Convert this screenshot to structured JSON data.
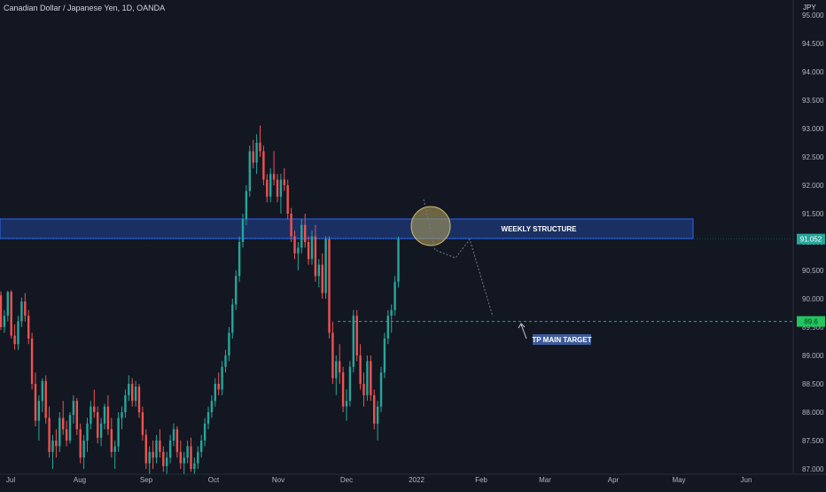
{
  "symbol_title": "Canadian Dollar / Japanese Yen, 1D, OANDA",
  "currency": "JPY",
  "colors": {
    "background": "#131722",
    "up": "#26a69a",
    "down": "#ef5350",
    "axis_text": "#b2b5be",
    "zone_fill": "#1e3a78",
    "zone_border": "#2962ff",
    "last_price_bg": "#26a69a",
    "target_line": "#26a69a",
    "target_price_bg": "#22c55e",
    "target_label_bg": "#3d5a99",
    "highlight_circle": "#a89a5a",
    "projection": "#787b86"
  },
  "chart_data": {
    "type": "candlestick",
    "y_ticks": [
      "87.000",
      "87.500",
      "88.000",
      "88.500",
      "89.000",
      "89.500",
      "90.000",
      "90.500",
      "91.000",
      "91.500",
      "92.000",
      "92.500",
      "93.000",
      "93.500",
      "94.000",
      "94.500",
      "95.000"
    ],
    "x_ticks": [
      "Jul",
      "Aug",
      "Sep",
      "Oct",
      "Nov",
      "Dec",
      "2022",
      "Feb",
      "Mar",
      "Apr",
      "May",
      "Jun"
    ],
    "last_price": "91.052",
    "target_price": "89.6",
    "candles": [
      [
        90.06,
        90.13,
        89.45,
        89.5
      ],
      [
        89.5,
        89.8,
        89.4,
        89.7
      ],
      [
        89.7,
        90.14,
        89.6,
        90.12
      ],
      [
        90.12,
        90.15,
        89.3,
        89.35
      ],
      [
        89.35,
        89.55,
        89.1,
        89.2
      ],
      [
        89.2,
        89.7,
        89.1,
        89.6
      ],
      [
        89.6,
        90.02,
        89.5,
        89.95
      ],
      [
        89.95,
        90.1,
        89.6,
        89.7
      ],
      [
        89.7,
        89.8,
        89.2,
        89.3
      ],
      [
        89.3,
        89.4,
        88.4,
        88.5
      ],
      [
        88.5,
        88.7,
        87.75,
        87.85
      ],
      [
        87.85,
        88.3,
        87.5,
        88.2
      ],
      [
        88.2,
        88.6,
        88.0,
        88.55
      ],
      [
        88.55,
        88.65,
        87.8,
        87.9
      ],
      [
        87.9,
        88.1,
        87.2,
        87.3
      ],
      [
        87.3,
        87.6,
        87.0,
        87.5
      ],
      [
        87.5,
        87.7,
        87.2,
        87.4
      ],
      [
        87.4,
        88.0,
        87.3,
        87.9
      ],
      [
        87.9,
        88.2,
        87.6,
        87.7
      ],
      [
        87.7,
        87.85,
        87.4,
        87.5
      ],
      [
        87.5,
        88.0,
        87.45,
        87.95
      ],
      [
        87.95,
        88.3,
        87.8,
        88.2
      ],
      [
        88.2,
        88.25,
        87.6,
        87.7
      ],
      [
        87.7,
        87.8,
        87.1,
        87.2
      ],
      [
        87.2,
        87.6,
        87.0,
        87.5
      ],
      [
        87.5,
        87.9,
        87.3,
        87.8
      ],
      [
        87.8,
        88.2,
        87.7,
        88.1
      ],
      [
        88.1,
        88.4,
        87.9,
        88.0
      ],
      [
        88.0,
        88.1,
        87.45,
        87.55
      ],
      [
        87.55,
        87.9,
        87.4,
        87.8
      ],
      [
        87.8,
        88.15,
        87.7,
        88.1
      ],
      [
        88.1,
        88.3,
        87.6,
        87.7
      ],
      [
        87.7,
        87.9,
        87.2,
        87.3
      ],
      [
        87.3,
        87.5,
        87.0,
        87.4
      ],
      [
        87.4,
        88.0,
        87.3,
        87.9
      ],
      [
        87.9,
        88.1,
        87.7,
        88.0
      ],
      [
        88.0,
        88.4,
        87.9,
        88.3
      ],
      [
        88.3,
        88.65,
        88.2,
        88.5
      ],
      [
        88.5,
        88.6,
        88.1,
        88.2
      ],
      [
        88.2,
        88.55,
        88.1,
        88.45
      ],
      [
        88.45,
        88.5,
        87.9,
        88.0
      ],
      [
        88.0,
        88.1,
        87.5,
        87.6
      ],
      [
        87.6,
        87.7,
        87.0,
        87.1
      ],
      [
        87.1,
        87.4,
        86.9,
        87.3
      ],
      [
        87.3,
        87.5,
        87.0,
        87.2
      ],
      [
        87.2,
        87.6,
        87.1,
        87.5
      ],
      [
        87.5,
        87.7,
        87.2,
        87.3
      ],
      [
        87.3,
        87.4,
        86.95,
        87.05
      ],
      [
        87.05,
        87.3,
        86.9,
        87.2
      ],
      [
        87.2,
        87.6,
        87.1,
        87.5
      ],
      [
        87.5,
        87.8,
        87.4,
        87.7
      ],
      [
        87.7,
        87.75,
        87.2,
        87.3
      ],
      [
        87.3,
        87.5,
        87.0,
        87.1
      ],
      [
        87.1,
        87.3,
        86.9,
        87.2
      ],
      [
        87.2,
        87.5,
        87.1,
        87.4
      ],
      [
        87.4,
        87.55,
        86.95,
        87.0
      ],
      [
        87.0,
        87.2,
        86.9,
        87.1
      ],
      [
        87.1,
        87.4,
        87.0,
        87.3
      ],
      [
        87.3,
        87.6,
        87.2,
        87.5
      ],
      [
        87.5,
        87.9,
        87.4,
        87.8
      ],
      [
        87.8,
        88.1,
        87.7,
        88.0
      ],
      [
        88.0,
        88.3,
        87.9,
        88.2
      ],
      [
        88.2,
        88.6,
        88.1,
        88.5
      ],
      [
        88.5,
        88.7,
        88.3,
        88.4
      ],
      [
        88.4,
        88.9,
        88.3,
        88.8
      ],
      [
        88.8,
        89.1,
        88.7,
        89.0
      ],
      [
        89.0,
        89.5,
        88.9,
        89.4
      ],
      [
        89.4,
        90.0,
        89.3,
        89.9
      ],
      [
        89.9,
        90.5,
        89.8,
        90.4
      ],
      [
        90.4,
        91.1,
        90.3,
        91.0
      ],
      [
        91.0,
        91.5,
        90.9,
        91.4
      ],
      [
        91.4,
        92.0,
        91.3,
        91.9
      ],
      [
        91.9,
        92.7,
        91.8,
        92.6
      ],
      [
        92.6,
        92.8,
        92.3,
        92.4
      ],
      [
        92.4,
        92.9,
        92.2,
        92.75
      ],
      [
        92.75,
        93.05,
        92.5,
        92.6
      ],
      [
        92.6,
        92.7,
        92.0,
        92.1
      ],
      [
        92.1,
        92.2,
        91.7,
        91.8
      ],
      [
        91.8,
        92.3,
        91.7,
        92.2
      ],
      [
        92.2,
        92.6,
        92.0,
        92.1
      ],
      [
        92.1,
        92.2,
        91.7,
        91.8
      ],
      [
        91.8,
        92.2,
        91.5,
        92.1
      ],
      [
        92.1,
        92.3,
        91.9,
        92.0
      ],
      [
        92.0,
        92.1,
        91.4,
        91.5
      ],
      [
        91.5,
        91.6,
        91.0,
        91.1
      ],
      [
        91.1,
        91.2,
        90.7,
        90.8
      ],
      [
        90.8,
        91.0,
        90.5,
        90.9
      ],
      [
        90.9,
        91.4,
        90.8,
        91.3
      ],
      [
        91.3,
        91.5,
        90.9,
        91.0
      ],
      [
        91.0,
        91.1,
        90.6,
        90.7
      ],
      [
        90.7,
        91.2,
        90.6,
        91.1
      ],
      [
        91.1,
        91.3,
        90.3,
        90.4
      ],
      [
        90.4,
        90.7,
        90.2,
        90.6
      ],
      [
        90.6,
        90.8,
        90.0,
        90.1
      ],
      [
        90.1,
        91.1,
        90.0,
        91.05
      ],
      [
        91.05,
        91.1,
        89.3,
        89.4
      ],
      [
        89.4,
        89.6,
        88.5,
        88.6
      ],
      [
        88.6,
        89.0,
        88.3,
        88.9
      ],
      [
        88.9,
        89.2,
        88.5,
        88.7
      ],
      [
        88.7,
        88.8,
        88.0,
        88.1
      ],
      [
        88.1,
        88.4,
        87.85,
        88.2
      ],
      [
        88.2,
        88.9,
        88.1,
        88.8
      ],
      [
        88.8,
        89.8,
        88.7,
        89.7
      ],
      [
        89.7,
        89.8,
        88.9,
        89.0
      ],
      [
        89.0,
        89.2,
        88.4,
        88.5
      ],
      [
        88.5,
        88.7,
        88.1,
        88.3
      ],
      [
        88.3,
        89.0,
        88.2,
        88.9
      ],
      [
        88.9,
        89.0,
        88.2,
        88.3
      ],
      [
        88.3,
        88.4,
        87.7,
        87.8
      ],
      [
        87.8,
        88.2,
        87.5,
        88.1
      ],
      [
        88.1,
        88.8,
        88.0,
        88.7
      ],
      [
        88.7,
        89.4,
        88.6,
        89.3
      ],
      [
        89.3,
        89.8,
        89.2,
        89.7
      ],
      [
        89.7,
        89.9,
        89.4,
        89.8
      ],
      [
        89.8,
        90.4,
        89.7,
        90.3
      ],
      [
        90.3,
        91.1,
        90.2,
        91.05
      ]
    ]
  },
  "annotations": {
    "zone_label": "WEEKLY STRUCTURE",
    "target_label": "TP MAIN TARGET"
  }
}
